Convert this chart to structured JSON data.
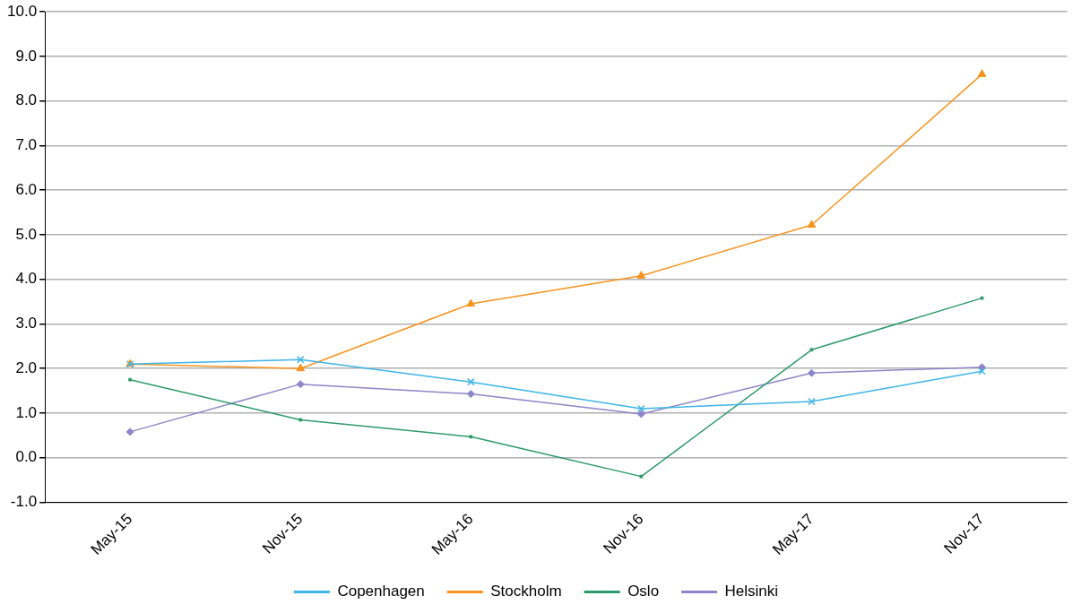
{
  "chart_data": {
    "type": "line",
    "categories": [
      "May-15",
      "Nov-15",
      "May-16",
      "Nov-16",
      "May-17",
      "Nov-17"
    ],
    "series": [
      {
        "name": "Copenhagen",
        "color": "#3db5e6",
        "marker": "cross",
        "values": [
          2.1,
          2.2,
          1.7,
          1.1,
          1.26,
          1.94
        ]
      },
      {
        "name": "Stockholm",
        "color": "#f7941d",
        "marker": "triangle",
        "values": [
          2.1,
          2.0,
          3.45,
          4.08,
          5.22,
          8.6
        ]
      },
      {
        "name": "Oslo",
        "color": "#2e9a6a",
        "marker": "square",
        "values": [
          1.75,
          0.85,
          0.47,
          -0.42,
          2.42,
          3.58
        ]
      },
      {
        "name": "Helsinki",
        "color": "#8e86c8",
        "marker": "diamond",
        "values": [
          0.58,
          1.65,
          1.43,
          0.98,
          1.9,
          2.03
        ]
      }
    ],
    "ylim": [
      -1,
      10
    ],
    "yticks": [
      {
        "value": -1,
        "label": "-1.0"
      },
      {
        "value": 0,
        "label": "0.0"
      },
      {
        "value": 1,
        "label": "1.0"
      },
      {
        "value": 2,
        "label": "2.0"
      },
      {
        "value": 3,
        "label": "3.0"
      },
      {
        "value": 4,
        "label": "4.0"
      },
      {
        "value": 5,
        "label": "5.0"
      },
      {
        "value": 6,
        "label": "6.0"
      },
      {
        "value": 7,
        "label": "7.0"
      },
      {
        "value": 8,
        "label": "8.0"
      },
      {
        "value": 9,
        "label": "9.0"
      },
      {
        "value": 10,
        "label": "10.0"
      }
    ],
    "grid": "y",
    "legend": "bottom",
    "line_style": "solid"
  }
}
